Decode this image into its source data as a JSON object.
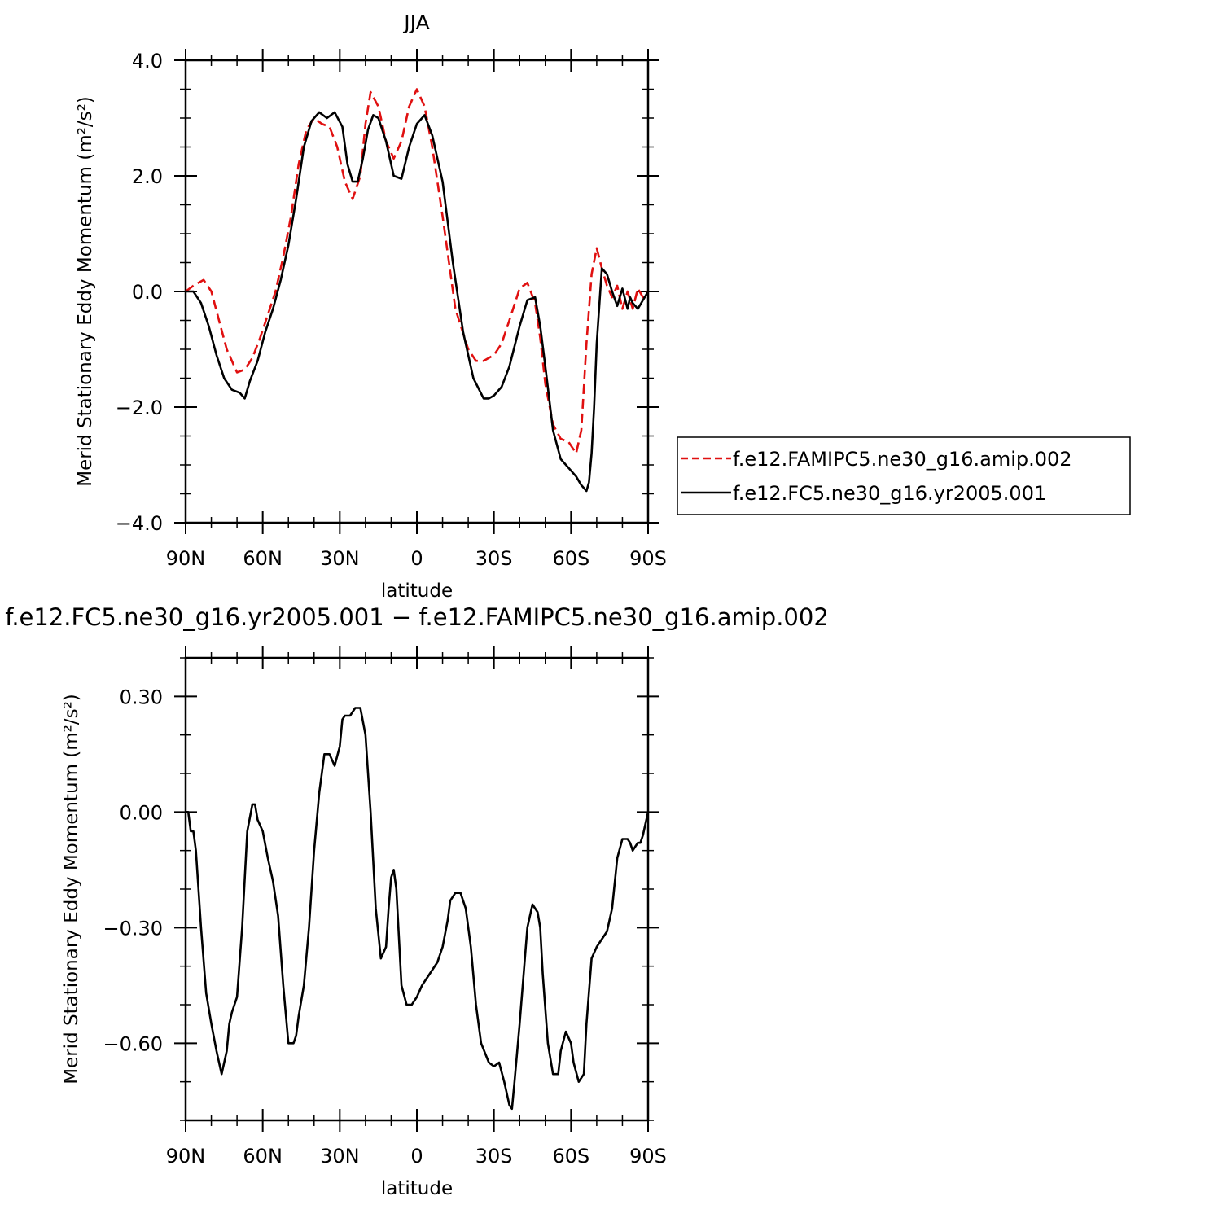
{
  "chart_data": [
    {
      "type": "line",
      "title": "JJA",
      "xlabel": "latitude",
      "ylabel": "Merid Stationary Eddy Momentum (m²/s²)",
      "xlim": [
        90,
        -90
      ],
      "ylim": [
        -4.0,
        4.0
      ],
      "yticks": [
        4.0,
        2.0,
        0.0,
        -2.0,
        -4.0
      ],
      "ytick_labels": [
        "4.0",
        "2.0",
        "0.0",
        "−2.0",
        "−4.0"
      ],
      "xticks": [
        90,
        60,
        30,
        0,
        -30,
        -60,
        -90
      ],
      "xtick_labels": [
        "90N",
        "60N",
        "30N",
        "0",
        "30S",
        "60S",
        "90S"
      ],
      "legend_position": "right",
      "series": [
        {
          "name": "f.e12.FAMIPC5.ne30_g16.amip.002",
          "color": "#e01010",
          "style": "dashed",
          "x": [
            90,
            87,
            83,
            80,
            77,
            74,
            70,
            67,
            64,
            61,
            58,
            55,
            52,
            49,
            46,
            43,
            40,
            37,
            34,
            31,
            28,
            25,
            22,
            20,
            18,
            15,
            12,
            9,
            6,
            3,
            0,
            -3,
            -6,
            -10,
            -15,
            -20,
            -23,
            -26,
            -30,
            -33,
            -36,
            -40,
            -43,
            -46,
            -48,
            -50,
            -53,
            -56,
            -59,
            -62,
            -64,
            -66,
            -68,
            -70,
            -72,
            -74,
            -76,
            -78,
            -80,
            -82,
            -84,
            -86,
            -88,
            -90
          ],
          "y": [
            0.0,
            0.1,
            0.2,
            0.0,
            -0.5,
            -1.0,
            -1.4,
            -1.35,
            -1.15,
            -0.8,
            -0.4,
            0.0,
            0.6,
            1.3,
            2.2,
            2.8,
            3.0,
            2.9,
            2.85,
            2.5,
            1.9,
            1.6,
            2.0,
            2.9,
            3.45,
            3.2,
            2.6,
            2.3,
            2.6,
            3.2,
            3.5,
            3.2,
            2.5,
            1.3,
            -0.3,
            -1.0,
            -1.2,
            -1.2,
            -1.1,
            -0.9,
            -0.5,
            0.05,
            0.15,
            -0.2,
            -0.8,
            -1.6,
            -2.3,
            -2.55,
            -2.6,
            -2.8,
            -2.4,
            -0.9,
            0.3,
            0.75,
            0.4,
            0.1,
            -0.1,
            0.1,
            -0.3,
            0.0,
            -0.3,
            0.05,
            -0.1,
            0.0
          ]
        },
        {
          "name": "f.e12.FC5.ne30_g16.yr2005.001",
          "color": "#000000",
          "style": "solid",
          "x": [
            90,
            87,
            84,
            81,
            78,
            75,
            72,
            69,
            67,
            65,
            62,
            59,
            56,
            53,
            50,
            47,
            44,
            41,
            38,
            35,
            32,
            29,
            27,
            25,
            23,
            21,
            19,
            17,
            15,
            12,
            9,
            6,
            3,
            0,
            -3,
            -6,
            -10,
            -14,
            -18,
            -22,
            -26,
            -28,
            -30,
            -33,
            -36,
            -40,
            -43,
            -46,
            -48,
            -50,
            -53,
            -56,
            -59,
            -62,
            -64,
            -66,
            -67,
            -68,
            -69,
            -70,
            -72,
            -74,
            -76,
            -78,
            -80,
            -82,
            -83,
            -84,
            -86,
            -88,
            -90
          ],
          "y": [
            0.0,
            0.0,
            -0.2,
            -0.6,
            -1.1,
            -1.5,
            -1.7,
            -1.75,
            -1.85,
            -1.55,
            -1.2,
            -0.7,
            -0.3,
            0.2,
            0.8,
            1.6,
            2.5,
            2.95,
            3.1,
            3.0,
            3.1,
            2.85,
            2.2,
            1.9,
            1.9,
            2.3,
            2.8,
            3.05,
            3.0,
            2.6,
            2.0,
            1.95,
            2.5,
            2.9,
            3.05,
            2.7,
            1.9,
            0.5,
            -0.7,
            -1.5,
            -1.85,
            -1.85,
            -1.8,
            -1.65,
            -1.3,
            -0.6,
            -0.15,
            -0.1,
            -0.6,
            -1.3,
            -2.4,
            -2.9,
            -3.05,
            -3.2,
            -3.35,
            -3.45,
            -3.3,
            -2.8,
            -2.0,
            -0.9,
            0.4,
            0.3,
            0.0,
            -0.25,
            0.05,
            -0.3,
            -0.1,
            -0.2,
            -0.3,
            -0.15,
            0.0
          ]
        }
      ]
    },
    {
      "type": "line",
      "title": "f.e12.FC5.ne30_g16.yr2005.001 − f.e12.FAMIPC5.ne30_g16.amip.002",
      "xlabel": "latitude",
      "ylabel": "Merid Stationary Eddy Momentum (m²/s²)",
      "xlim": [
        90,
        -90
      ],
      "ylim": [
        -0.8,
        0.4
      ],
      "yticks": [
        0.3,
        0.0,
        -0.3,
        -0.6
      ],
      "ytick_labels": [
        "0.30",
        "0.00",
        "−0.30",
        "−0.60"
      ],
      "xticks": [
        90,
        60,
        30,
        0,
        -30,
        -60,
        -90
      ],
      "xtick_labels": [
        "90N",
        "60N",
        "30N",
        "0",
        "30S",
        "60S",
        "90S"
      ],
      "series": [
        {
          "color": "#000000",
          "style": "solid",
          "x": [
            90,
            89,
            88,
            87,
            86,
            84,
            82,
            80,
            78,
            76,
            74,
            73,
            72,
            70,
            68,
            66,
            64,
            63,
            62,
            60,
            58,
            56,
            54,
            52,
            50,
            48,
            47,
            46,
            44,
            42,
            40,
            38,
            36,
            34,
            32,
            30,
            29,
            28,
            26,
            24,
            22,
            20,
            18,
            16,
            14,
            12,
            11,
            10,
            9,
            8,
            6,
            4,
            2,
            0,
            -2,
            -4,
            -6,
            -8,
            -10,
            -12,
            -13,
            -15,
            -17,
            -19,
            -21,
            -23,
            -25,
            -28,
            -30,
            -32,
            -34,
            -36,
            -37,
            -38,
            -40,
            -43,
            -45,
            -47,
            -48,
            -49,
            -51,
            -53,
            -55,
            -56,
            -58,
            -60,
            -61,
            -63,
            -65,
            -66,
            -68,
            -70,
            -72,
            -74,
            -76,
            -78,
            -80,
            -82,
            -83,
            -84,
            -85,
            -86,
            -87,
            -88,
            -89,
            -90
          ],
          "y": [
            0.0,
            0.0,
            -0.05,
            -0.05,
            -0.1,
            -0.3,
            -0.47,
            -0.55,
            -0.62,
            -0.68,
            -0.62,
            -0.55,
            -0.52,
            -0.48,
            -0.3,
            -0.05,
            0.02,
            0.02,
            -0.02,
            -0.05,
            -0.12,
            -0.18,
            -0.27,
            -0.45,
            -0.6,
            -0.6,
            -0.58,
            -0.53,
            -0.45,
            -0.3,
            -0.1,
            0.05,
            0.15,
            0.15,
            0.12,
            0.17,
            0.24,
            0.25,
            0.25,
            0.27,
            0.27,
            0.2,
            0.0,
            -0.25,
            -0.38,
            -0.35,
            -0.25,
            -0.17,
            -0.15,
            -0.2,
            -0.45,
            -0.5,
            -0.5,
            -0.48,
            -0.45,
            -0.43,
            -0.41,
            -0.39,
            -0.35,
            -0.28,
            -0.23,
            -0.21,
            -0.21,
            -0.25,
            -0.35,
            -0.5,
            -0.6,
            -0.65,
            -0.66,
            -0.65,
            -0.7,
            -0.76,
            -0.77,
            -0.7,
            -0.55,
            -0.3,
            -0.24,
            -0.26,
            -0.3,
            -0.42,
            -0.6,
            -0.68,
            -0.68,
            -0.62,
            -0.57,
            -0.6,
            -0.65,
            -0.7,
            -0.68,
            -0.55,
            -0.38,
            -0.35,
            -0.33,
            -0.31,
            -0.25,
            -0.12,
            -0.07,
            -0.07,
            -0.08,
            -0.1,
            -0.09,
            -0.08,
            -0.08,
            -0.06,
            -0.03,
            0.0
          ]
        }
      ]
    }
  ]
}
